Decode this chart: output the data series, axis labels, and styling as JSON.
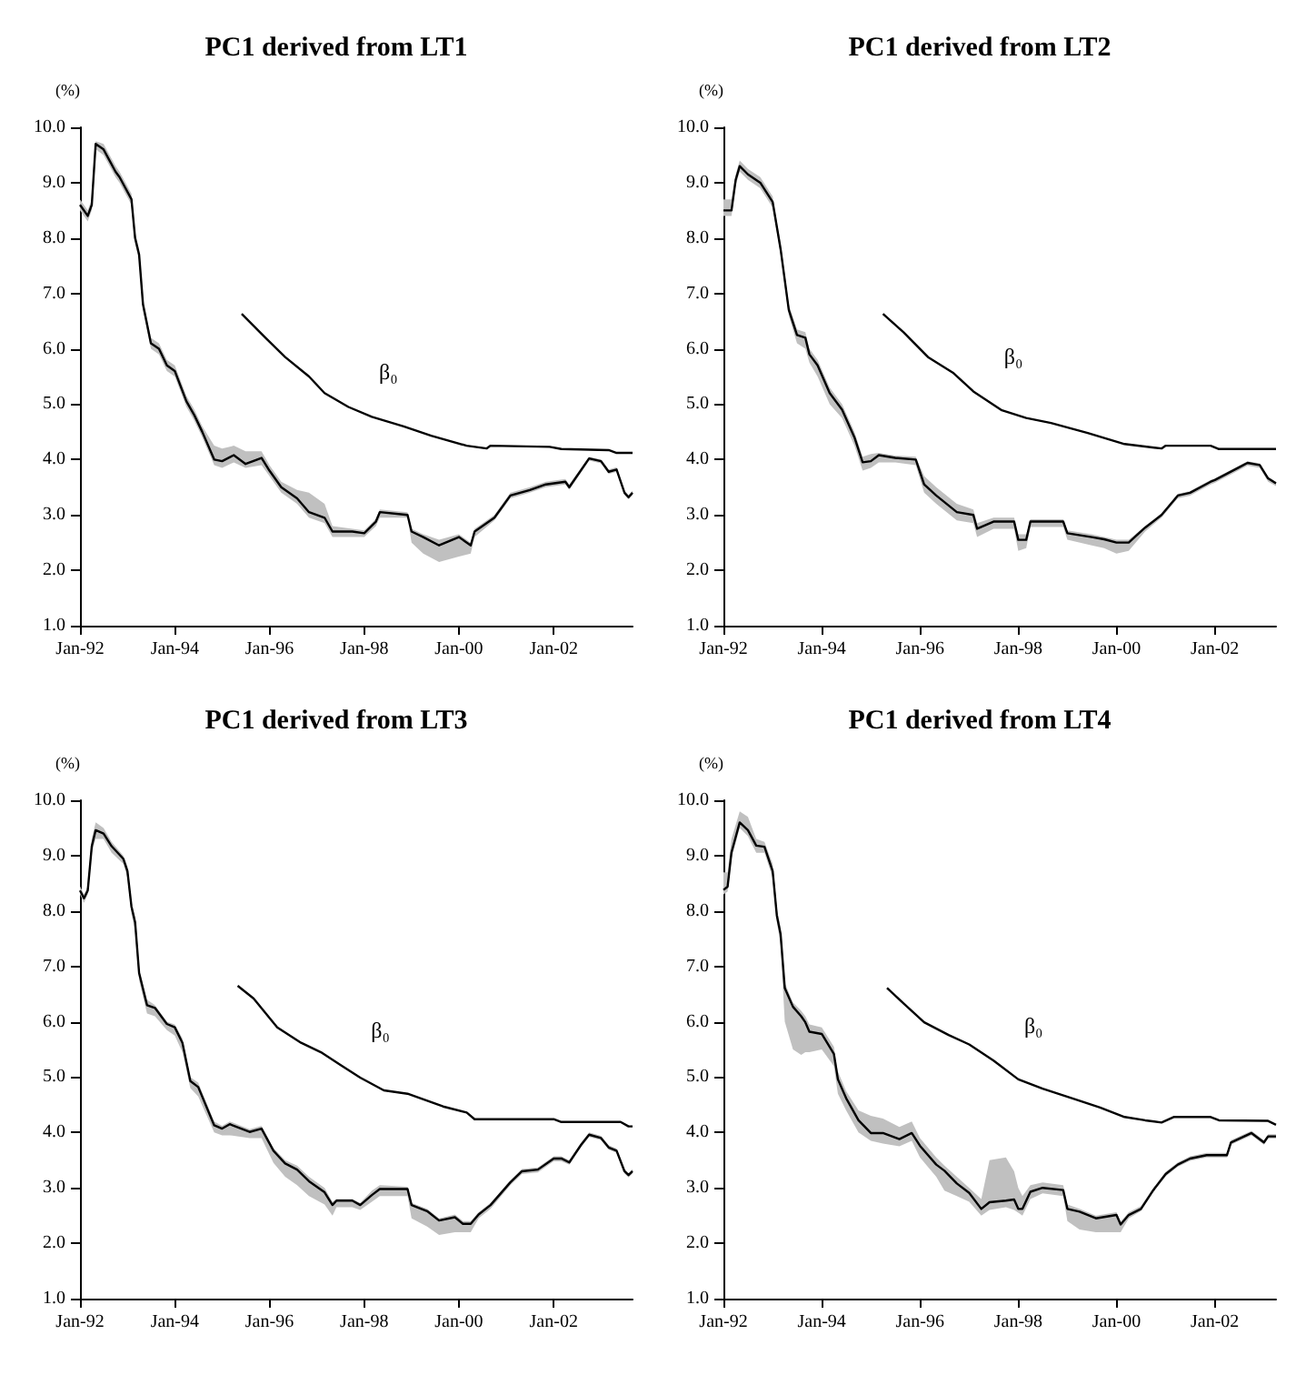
{
  "chart_data": [
    {
      "type": "line",
      "title": "PC1 derived from LT1",
      "ylabel": "(%)",
      "xlim": [
        "1992-01",
        "2003-09"
      ],
      "ylim": [
        1,
        10
      ],
      "xticks": [
        {
          "value": "1992-01",
          "label": "Jan-92"
        },
        {
          "value": "1994-01",
          "label": "Jan-94"
        },
        {
          "value": "1996-01",
          "label": "Jan-96"
        },
        {
          "value": "1998-01",
          "label": "Jan-98"
        },
        {
          "value": "2000-01",
          "label": "Jan-00"
        },
        {
          "value": "2002-01",
          "label": "Jan-02"
        }
      ],
      "yticks": [
        {
          "value": 1,
          "label": "1.0"
        },
        {
          "value": 2,
          "label": "2.0"
        },
        {
          "value": 3,
          "label": "3.0"
        },
        {
          "value": 4,
          "label": "4.0"
        },
        {
          "value": 5,
          "label": "5.0"
        },
        {
          "value": 6,
          "label": "6.0"
        },
        {
          "value": 7,
          "label": "7.0"
        },
        {
          "value": 8,
          "label": "8.0"
        },
        {
          "value": 9,
          "label": "9.0"
        },
        {
          "value": 10,
          "label": "10.0"
        }
      ],
      "grid": false,
      "series": [
        {
          "color": "#000000",
          "x": [
            "1992-01",
            "1992-03",
            "1992-04",
            "1992-05",
            "1992-07",
            "1992-10",
            "1992-11",
            "1993-02",
            "1993-03",
            "1993-04",
            "1993-05",
            "1993-07",
            "1993-09",
            "1993-11",
            "1994-01",
            "1994-04",
            "1994-06",
            "1994-08",
            "1994-11",
            "1995-01",
            "1995-04",
            "1995-07",
            "1995-11",
            "1996-01",
            "1996-04",
            "1996-08",
            "1996-11",
            "1997-03",
            "1997-05",
            "1997-10",
            "1998-01",
            "1998-04",
            "1998-05",
            "1998-12",
            "1999-01",
            "1999-04",
            "1999-08",
            "2000-01",
            "2000-04",
            "2000-05",
            "2000-10",
            "2001-02",
            "2001-07",
            "2001-11",
            "2002-04",
            "2002-05",
            "2002-10",
            "2003-01",
            "2003-03",
            "2003-05",
            "2003-07",
            "2003-08",
            "2003-09"
          ],
          "values": [
            8.6,
            8.4,
            8.6,
            9.7,
            9.6,
            9.2,
            9.1,
            8.7,
            8.0,
            7.7,
            6.8,
            6.1,
            6.0,
            5.7,
            5.6,
            5.05,
            4.8,
            4.5,
            4.0,
            3.97,
            4.08,
            3.92,
            4.03,
            3.8,
            3.5,
            3.3,
            3.05,
            2.95,
            2.7,
            2.7,
            2.67,
            2.88,
            3.05,
            3.0,
            2.7,
            2.6,
            2.45,
            2.6,
            2.45,
            2.7,
            2.95,
            3.35,
            3.45,
            3.55,
            3.6,
            3.5,
            4.02,
            3.97,
            3.78,
            3.82,
            3.4,
            3.32,
            3.4
          ],
          "upper": [
            8.7,
            8.5,
            8.7,
            9.75,
            9.7,
            9.3,
            9.2,
            8.8,
            8.1,
            7.8,
            6.9,
            6.2,
            6.1,
            5.8,
            5.7,
            5.15,
            4.9,
            4.6,
            4.25,
            4.2,
            4.25,
            4.15,
            4.15,
            3.9,
            3.6,
            3.45,
            3.4,
            3.2,
            2.8,
            2.75,
            2.72,
            2.93,
            3.1,
            3.05,
            2.75,
            2.65,
            2.55,
            2.65,
            2.5,
            2.75,
            3.0,
            3.4,
            3.5,
            3.6,
            3.65,
            3.55,
            4.05,
            4.0,
            3.82,
            3.86,
            3.44,
            3.36,
            3.44
          ],
          "lower": [
            8.5,
            8.3,
            8.5,
            9.6,
            9.5,
            9.1,
            9.0,
            8.6,
            7.9,
            7.6,
            6.7,
            6.0,
            5.9,
            5.6,
            5.5,
            4.95,
            4.7,
            4.4,
            3.9,
            3.85,
            3.95,
            3.85,
            3.9,
            3.7,
            3.4,
            3.2,
            2.95,
            2.85,
            2.6,
            2.6,
            2.6,
            2.8,
            2.95,
            2.95,
            2.5,
            2.3,
            2.15,
            2.25,
            2.3,
            2.6,
            2.9,
            3.3,
            3.4,
            3.5,
            3.55,
            3.45,
            3.98,
            3.93,
            3.74,
            3.78,
            3.36,
            3.28,
            3.36
          ]
        },
        {
          "name": "β₀",
          "color": "#000000",
          "x": [
            "1995-06",
            "1995-12",
            "1996-05",
            "1996-11",
            "1997-03",
            "1997-09",
            "1998-03",
            "1998-11",
            "1999-06",
            "2000-03",
            "2000-08",
            "2000-09",
            "2001-12",
            "2002-03",
            "2003-03",
            "2003-05",
            "2003-09"
          ],
          "values": [
            6.63,
            6.2,
            5.85,
            5.5,
            5.2,
            4.95,
            4.77,
            4.6,
            4.43,
            4.25,
            4.2,
            4.25,
            4.23,
            4.19,
            4.17,
            4.12,
            4.12
          ]
        }
      ]
    },
    {
      "type": "line",
      "title": "PC1 derived from LT2",
      "ylabel": "(%)",
      "xlim": [
        "1992-01",
        "2003-04"
      ],
      "ylim": [
        1,
        10
      ],
      "xticks": [
        {
          "value": "1992-01",
          "label": "Jan-92"
        },
        {
          "value": "1994-01",
          "label": "Jan-94"
        },
        {
          "value": "1996-01",
          "label": "Jan-96"
        },
        {
          "value": "1998-01",
          "label": "Jan-98"
        },
        {
          "value": "2000-01",
          "label": "Jan-00"
        },
        {
          "value": "2002-01",
          "label": "Jan-02"
        }
      ],
      "yticks": [
        {
          "value": 1,
          "label": "1.0"
        },
        {
          "value": 2,
          "label": "2.0"
        },
        {
          "value": 3,
          "label": "3.0"
        },
        {
          "value": 4,
          "label": "4.0"
        },
        {
          "value": 5,
          "label": "5.0"
        },
        {
          "value": 6,
          "label": "6.0"
        },
        {
          "value": 7,
          "label": "7.0"
        },
        {
          "value": 8,
          "label": "8.0"
        },
        {
          "value": 9,
          "label": "9.0"
        },
        {
          "value": 10,
          "label": "10.0"
        }
      ],
      "grid": false,
      "series": [
        {
          "color": "#000000",
          "x": [
            "1992-01",
            "1992-03",
            "1992-04",
            "1992-05",
            "1992-07",
            "1992-10",
            "1993-01",
            "1993-03",
            "1993-05",
            "1993-07",
            "1993-09",
            "1993-10",
            "1993-12",
            "1994-03",
            "1994-06",
            "1994-09",
            "1994-11",
            "1995-01",
            "1995-03",
            "1995-07",
            "1995-12",
            "1996-02",
            "1996-05",
            "1996-10",
            "1997-02",
            "1997-03",
            "1997-07",
            "1997-12",
            "1998-01",
            "1998-03",
            "1998-04",
            "1998-12",
            "1999-01",
            "1999-07",
            "1999-10",
            "2000-01",
            "2000-04",
            "2000-08",
            "2000-12",
            "2001-04",
            "2001-07",
            "2001-12",
            "2002-01",
            "2002-07",
            "2002-09",
            "2002-12",
            "2003-02",
            "2003-04"
          ],
          "values": [
            8.5,
            8.5,
            9.05,
            9.3,
            9.15,
            9.0,
            8.65,
            7.8,
            6.7,
            6.25,
            6.2,
            5.9,
            5.7,
            5.2,
            4.9,
            4.4,
            3.95,
            3.97,
            4.08,
            4.03,
            4.0,
            3.55,
            3.35,
            3.05,
            3.0,
            2.75,
            2.88,
            2.88,
            2.55,
            2.55,
            2.88,
            2.88,
            2.67,
            2.6,
            2.56,
            2.5,
            2.5,
            2.77,
            3.0,
            3.35,
            3.4,
            3.6,
            3.63,
            3.86,
            3.94,
            3.9,
            3.66,
            3.57
          ],
          "upper": [
            8.7,
            8.7,
            9.15,
            9.4,
            9.25,
            9.1,
            8.75,
            7.9,
            6.8,
            6.35,
            6.3,
            6.0,
            5.8,
            5.3,
            5.0,
            4.5,
            4.05,
            4.1,
            4.12,
            4.07,
            4.05,
            3.7,
            3.5,
            3.2,
            3.1,
            2.85,
            2.95,
            2.95,
            2.65,
            2.65,
            2.92,
            2.92,
            2.72,
            2.65,
            2.6,
            2.55,
            2.55,
            2.8,
            3.03,
            3.38,
            3.43,
            3.63,
            3.66,
            3.89,
            3.97,
            3.93,
            3.69,
            3.6
          ],
          "lower": [
            8.4,
            8.4,
            8.95,
            9.2,
            9.05,
            8.9,
            8.55,
            7.7,
            6.6,
            6.1,
            6.0,
            5.75,
            5.5,
            5.0,
            4.75,
            4.25,
            3.8,
            3.85,
            3.95,
            3.95,
            3.9,
            3.4,
            3.2,
            2.9,
            2.85,
            2.6,
            2.75,
            2.75,
            2.35,
            2.4,
            2.78,
            2.78,
            2.55,
            2.45,
            2.4,
            2.3,
            2.35,
            2.7,
            2.95,
            3.3,
            3.35,
            3.55,
            3.58,
            3.81,
            3.89,
            3.85,
            3.6,
            3.52
          ]
        },
        {
          "name": "β₀",
          "color": "#000000",
          "x": [
            "1995-04",
            "1995-09",
            "1996-03",
            "1996-09",
            "1997-02",
            "1997-09",
            "1998-03",
            "1998-09",
            "1999-06",
            "2000-03",
            "2000-12",
            "2001-01",
            "2001-12",
            "2002-02",
            "2003-04"
          ],
          "values": [
            6.63,
            6.3,
            5.85,
            5.57,
            5.23,
            4.89,
            4.75,
            4.66,
            4.48,
            4.28,
            4.2,
            4.25,
            4.25,
            4.19,
            4.19
          ]
        }
      ]
    },
    {
      "type": "line",
      "title": "PC1 derived from LT3",
      "ylabel": "(%)",
      "xlim": [
        "1992-01",
        "2003-09"
      ],
      "ylim": [
        1,
        10
      ],
      "xticks": [
        {
          "value": "1992-01",
          "label": "Jan-92"
        },
        {
          "value": "1994-01",
          "label": "Jan-94"
        },
        {
          "value": "1996-01",
          "label": "Jan-96"
        },
        {
          "value": "1998-01",
          "label": "Jan-98"
        },
        {
          "value": "2000-01",
          "label": "Jan-00"
        },
        {
          "value": "2002-01",
          "label": "Jan-02"
        }
      ],
      "yticks": [
        {
          "value": 1,
          "label": "1.0"
        },
        {
          "value": 2,
          "label": "2.0"
        },
        {
          "value": 3,
          "label": "3.0"
        },
        {
          "value": 4,
          "label": "4.0"
        },
        {
          "value": 5,
          "label": "5.0"
        },
        {
          "value": 6,
          "label": "6.0"
        },
        {
          "value": 7,
          "label": "7.0"
        },
        {
          "value": 8,
          "label": "8.0"
        },
        {
          "value": 9,
          "label": "9.0"
        },
        {
          "value": 10,
          "label": "10.0"
        }
      ],
      "grid": false,
      "series": [
        {
          "color": "#000000",
          "x": [
            "1992-01",
            "1992-02",
            "1992-03",
            "1992-04",
            "1992-05",
            "1992-07",
            "1992-09",
            "1992-12",
            "1993-01",
            "1993-02",
            "1993-03",
            "1993-04",
            "1993-06",
            "1993-08",
            "1993-11",
            "1994-01",
            "1994-03",
            "1994-05",
            "1994-07",
            "1994-11",
            "1995-01",
            "1995-03",
            "1995-08",
            "1995-11",
            "1996-02",
            "1996-05",
            "1996-08",
            "1996-11",
            "1997-03",
            "1997-05",
            "1997-06",
            "1997-10",
            "1997-12",
            "1998-03",
            "1998-05",
            "1998-12",
            "1999-01",
            "1999-05",
            "1999-08",
            "1999-12",
            "2000-02",
            "2000-04",
            "2000-06",
            "2000-09",
            "2001-02",
            "2001-05",
            "2001-09",
            "2002-01",
            "2002-03",
            "2002-05",
            "2002-08",
            "2002-10",
            "2003-01",
            "2003-03",
            "2003-05",
            "2003-07",
            "2003-08",
            "2003-09"
          ],
          "values": [
            8.37,
            8.23,
            8.37,
            9.17,
            9.46,
            9.4,
            9.17,
            8.94,
            8.72,
            8.08,
            7.8,
            6.88,
            6.3,
            6.25,
            5.96,
            5.9,
            5.62,
            4.93,
            4.82,
            4.13,
            4.07,
            4.15,
            4.01,
            4.07,
            3.67,
            3.44,
            3.33,
            3.12,
            2.92,
            2.69,
            2.77,
            2.77,
            2.69,
            2.87,
            2.98,
            2.98,
            2.69,
            2.58,
            2.41,
            2.47,
            2.35,
            2.35,
            2.52,
            2.69,
            3.1,
            3.3,
            3.33,
            3.53,
            3.53,
            3.46,
            3.78,
            3.96,
            3.9,
            3.73,
            3.67,
            3.3,
            3.23,
            3.3
          ],
          "upper": [
            8.45,
            8.3,
            8.45,
            9.3,
            9.6,
            9.5,
            9.25,
            9.0,
            8.8,
            8.15,
            7.9,
            6.95,
            6.4,
            6.3,
            6.0,
            5.95,
            5.7,
            5.0,
            4.9,
            4.2,
            4.12,
            4.2,
            4.06,
            4.12,
            3.72,
            3.5,
            3.4,
            3.2,
            3.0,
            2.75,
            2.8,
            2.8,
            2.73,
            2.95,
            3.05,
            3.02,
            2.73,
            2.62,
            2.45,
            2.52,
            2.4,
            2.4,
            2.56,
            2.73,
            3.14,
            3.34,
            3.37,
            3.57,
            3.57,
            3.5,
            3.82,
            4.0,
            3.94,
            3.77,
            3.71,
            3.34,
            3.27,
            3.34
          ],
          "lower": [
            8.3,
            8.15,
            8.3,
            9.05,
            9.3,
            9.3,
            9.05,
            8.85,
            8.6,
            7.95,
            7.65,
            6.75,
            6.15,
            6.1,
            5.85,
            5.75,
            5.45,
            4.8,
            4.65,
            4.0,
            3.95,
            3.95,
            3.9,
            3.9,
            3.45,
            3.2,
            3.05,
            2.85,
            2.7,
            2.5,
            2.65,
            2.65,
            2.6,
            2.75,
            2.85,
            2.85,
            2.45,
            2.3,
            2.15,
            2.2,
            2.2,
            2.2,
            2.45,
            2.62,
            3.05,
            3.25,
            3.28,
            3.48,
            3.48,
            3.42,
            3.74,
            3.92,
            3.86,
            3.69,
            3.63,
            3.26,
            3.19,
            3.26
          ]
        },
        {
          "name": "β₀",
          "color": "#000000",
          "x": [
            "1995-05",
            "1995-09",
            "1996-03",
            "1996-09",
            "1997-02",
            "1997-07",
            "1997-12",
            "1998-06",
            "1998-12",
            "1999-09",
            "2000-03",
            "2000-05",
            "2002-01",
            "2002-03",
            "2003-06",
            "2003-08",
            "2003-09"
          ],
          "values": [
            6.65,
            6.42,
            5.9,
            5.62,
            5.45,
            5.22,
            4.99,
            4.76,
            4.7,
            4.47,
            4.36,
            4.24,
            4.24,
            4.19,
            4.19,
            4.11,
            4.11
          ]
        }
      ]
    },
    {
      "type": "line",
      "title": "PC1 derived from LT4",
      "ylabel": "(%)",
      "xlim": [
        "1992-01",
        "2003-04"
      ],
      "ylim": [
        1,
        10
      ],
      "xticks": [
        {
          "value": "1992-01",
          "label": "Jan-92"
        },
        {
          "value": "1994-01",
          "label": "Jan-94"
        },
        {
          "value": "1996-01",
          "label": "Jan-96"
        },
        {
          "value": "1998-01",
          "label": "Jan-98"
        },
        {
          "value": "2000-01",
          "label": "Jan-00"
        },
        {
          "value": "2002-01",
          "label": "Jan-02"
        }
      ],
      "yticks": [
        {
          "value": 1,
          "label": "1.0"
        },
        {
          "value": 2,
          "label": "2.0"
        },
        {
          "value": 3,
          "label": "3.0"
        },
        {
          "value": 4,
          "label": "4.0"
        },
        {
          "value": 5,
          "label": "5.0"
        },
        {
          "value": 6,
          "label": "6.0"
        },
        {
          "value": 7,
          "label": "7.0"
        },
        {
          "value": 8,
          "label": "8.0"
        },
        {
          "value": 9,
          "label": "9.0"
        },
        {
          "value": 10,
          "label": "10.0"
        }
      ],
      "grid": false,
      "series": [
        {
          "color": "#000000",
          "x": [
            "1992-01",
            "1992-02",
            "1992-03",
            "1992-05",
            "1992-07",
            "1992-09",
            "1992-11",
            "1993-01",
            "1993-02",
            "1993-03",
            "1993-04",
            "1993-06",
            "1993-08",
            "1993-09",
            "1993-10",
            "1994-01",
            "1994-04",
            "1994-05",
            "1994-07",
            "1994-10",
            "1995-01",
            "1995-04",
            "1995-08",
            "1995-11",
            "1996-01",
            "1996-05",
            "1996-07",
            "1996-10",
            "1997-01",
            "1997-04",
            "1997-06",
            "1997-10",
            "1997-12",
            "1998-01",
            "1998-02",
            "1998-04",
            "1998-07",
            "1998-12",
            "1999-01",
            "1999-04",
            "1999-08",
            "2000-01",
            "2000-02",
            "2000-04",
            "2000-07",
            "2000-10",
            "2001-01",
            "2001-04",
            "2001-07",
            "2001-11",
            "2002-04",
            "2002-05",
            "2002-10",
            "2003-01",
            "2003-02",
            "2003-04"
          ],
          "values": [
            8.38,
            8.44,
            9.06,
            9.6,
            9.46,
            9.18,
            9.16,
            8.72,
            7.92,
            7.58,
            6.61,
            6.27,
            6.1,
            5.99,
            5.82,
            5.78,
            5.42,
            4.96,
            4.62,
            4.22,
            3.99,
            3.99,
            3.88,
            3.99,
            3.76,
            3.42,
            3.31,
            3.08,
            2.91,
            2.62,
            2.74,
            2.77,
            2.79,
            2.62,
            2.62,
            2.93,
            3.0,
            2.96,
            2.62,
            2.57,
            2.45,
            2.51,
            2.34,
            2.51,
            2.62,
            2.96,
            3.25,
            3.42,
            3.53,
            3.59,
            3.59,
            3.82,
            3.99,
            3.82,
            3.93,
            3.93
          ],
          "upper": [
            8.7,
            8.7,
            9.3,
            9.8,
            9.7,
            9.3,
            9.25,
            8.85,
            8.05,
            7.7,
            6.7,
            6.35,
            6.2,
            6.1,
            5.95,
            5.9,
            5.55,
            5.1,
            4.75,
            4.4,
            4.3,
            4.25,
            4.1,
            4.2,
            3.9,
            3.55,
            3.4,
            3.2,
            3.0,
            2.8,
            3.5,
            3.55,
            3.3,
            3.0,
            2.85,
            3.05,
            3.1,
            3.05,
            2.7,
            2.62,
            2.5,
            2.56,
            2.39,
            2.56,
            2.67,
            3.0,
            3.29,
            3.46,
            3.57,
            3.63,
            3.63,
            3.86,
            4.03,
            3.86,
            3.97,
            3.97
          ],
          "lower": [
            8.3,
            8.35,
            8.95,
            9.5,
            9.35,
            9.05,
            9.05,
            8.6,
            7.8,
            7.4,
            6.0,
            5.5,
            5.4,
            5.45,
            5.45,
            5.5,
            5.2,
            4.7,
            4.4,
            4.0,
            3.85,
            3.8,
            3.75,
            3.85,
            3.55,
            3.2,
            2.95,
            2.85,
            2.75,
            2.5,
            2.6,
            2.65,
            2.6,
            2.55,
            2.5,
            2.8,
            2.9,
            2.85,
            2.4,
            2.25,
            2.2,
            2.2,
            2.2,
            2.45,
            2.58,
            2.92,
            3.21,
            3.38,
            3.49,
            3.55,
            3.55,
            3.78,
            3.95,
            3.78,
            3.89,
            3.89
          ]
        },
        {
          "name": "β₀",
          "color": "#000000",
          "x": [
            "1995-05",
            "1995-09",
            "1996-02",
            "1996-08",
            "1997-01",
            "1997-07",
            "1998-01",
            "1998-07",
            "1999-03",
            "1999-09",
            "2000-03",
            "2000-08",
            "2000-12",
            "2001-03",
            "2001-12",
            "2002-02",
            "2003-02",
            "2003-04"
          ],
          "values": [
            6.61,
            6.33,
            5.99,
            5.76,
            5.59,
            5.3,
            4.96,
            4.79,
            4.6,
            4.45,
            4.28,
            4.22,
            4.18,
            4.28,
            4.28,
            4.22,
            4.21,
            4.14
          ]
        }
      ]
    }
  ]
}
